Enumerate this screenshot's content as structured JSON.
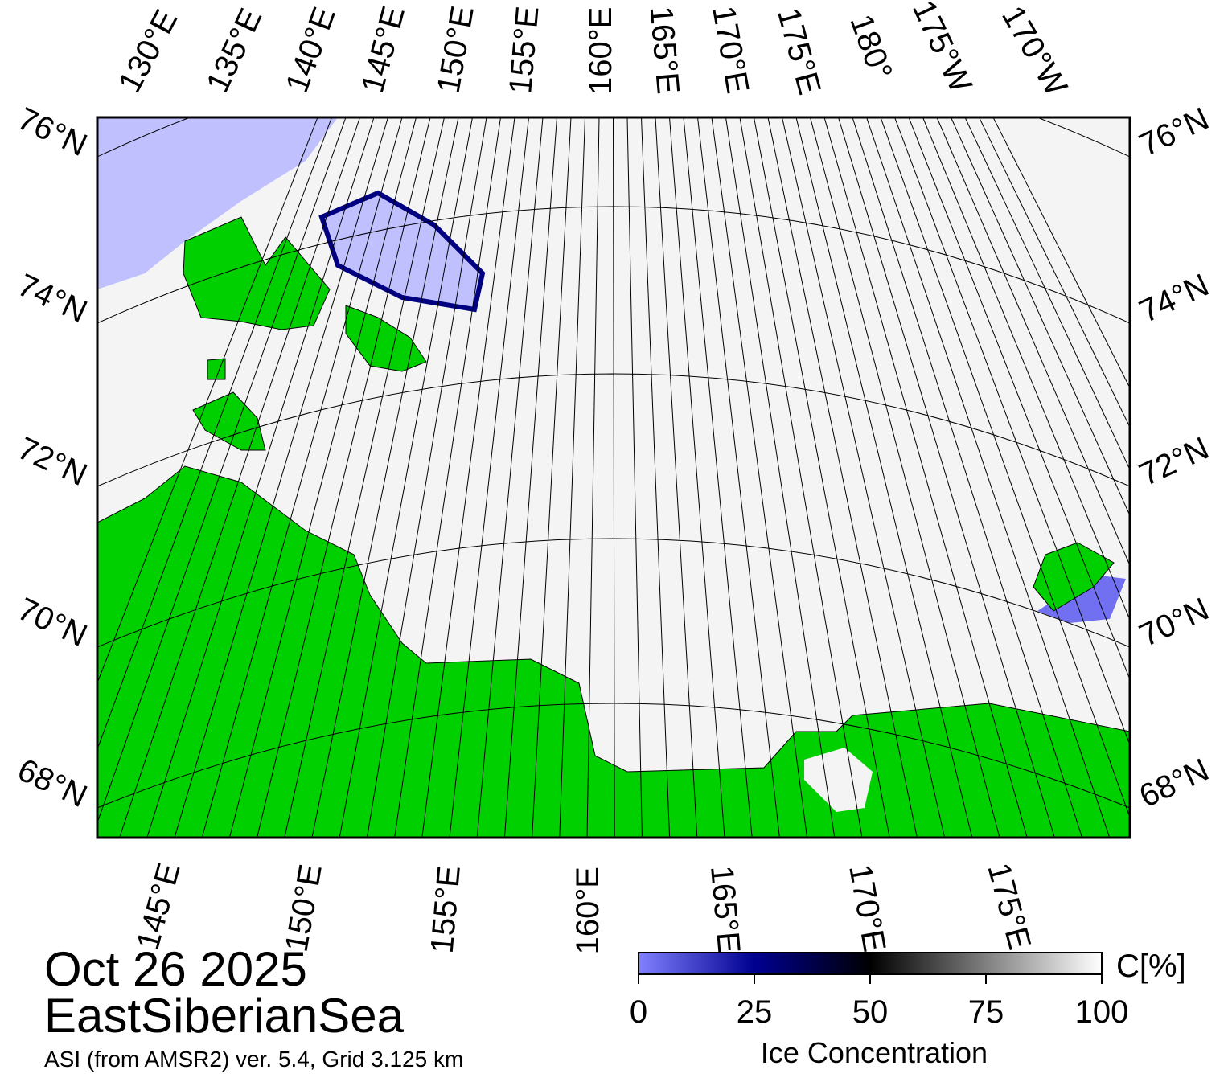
{
  "map": {
    "top_labels": [
      "130°E",
      "135°E",
      "140°E",
      "145°E",
      "150°E",
      "155°E",
      "160°E",
      "165°E",
      "170°E",
      "175°E",
      "180°",
      "175°W",
      "170°W"
    ],
    "left_labels": [
      "76°N",
      "74°N",
      "72°N",
      "70°N",
      "68°N"
    ],
    "right_labels": [
      "76°N",
      "74°N",
      "72°N",
      "70°N",
      "68°N"
    ],
    "bottom_labels": [
      "145°E",
      "150°E",
      "155°E",
      "160°E",
      "165°E",
      "170°E",
      "175°E"
    ]
  },
  "caption": {
    "date": "Oct 26 2025",
    "region": "EastSiberianSea",
    "source": "ASI (from AMSR2) ver. 5.4,  Grid 3.125 km"
  },
  "colorbar": {
    "lim": [
      0,
      100
    ],
    "ticks": [
      0,
      25,
      50,
      75,
      100
    ],
    "label": "Ice Concentration",
    "unit": "C[%]"
  }
}
